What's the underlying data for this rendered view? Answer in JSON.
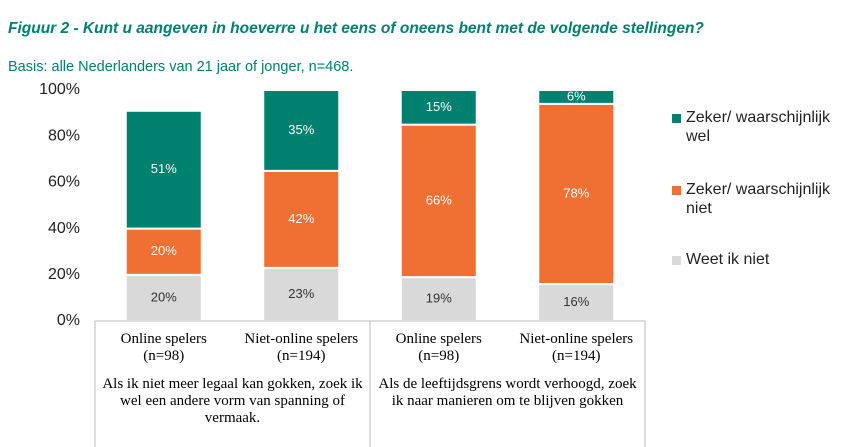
{
  "chart_data": {
    "type": "stacked-bar",
    "title": "Figuur 2 -  Kunt u aangeven in hoeverre u het eens of oneens bent met de volgende stellingen?",
    "subtitle": "Basis: alle Nederlanders van 21 jaar of jonger, n=468.",
    "categories": [
      [
        "Online spelers",
        "(n=98)"
      ],
      [
        "Niet-online spelers",
        "(n=194)"
      ],
      [
        "Online spelers",
        "(n=98)"
      ],
      [
        "Niet-online spelers",
        "(n=194)"
      ]
    ],
    "groups": [
      "Als ik niet meer legaal kan gokken, zoek ik wel een andere vorm van spanning of vermaak.",
      "Als de leeftijdsgrens wordt verhoogd, zoek ik naar manieren om te blijven gokken"
    ],
    "series": [
      {
        "name": "Weet ik niet",
        "color": "#d9d9d9",
        "values": [
          20,
          23,
          19,
          16
        ],
        "value_labels": [
          "20%",
          "23%",
          "19%",
          "16%"
        ]
      },
      {
        "name": "Zeker/ waarschijnlijk niet",
        "color": "#f07033",
        "values": [
          20,
          42,
          66,
          78
        ],
        "value_labels": [
          "20%",
          "42%",
          "66%",
          "78%"
        ]
      },
      {
        "name": "Zeker/ waarschijnlijk wel",
        "color": "#00806f",
        "values": [
          51,
          35,
          15,
          6
        ],
        "value_labels": [
          "51%",
          "35%",
          "15%",
          "6%"
        ]
      }
    ],
    "ylim": [
      0,
      100
    ],
    "yticks": [
      {
        "value": 0,
        "label": "0%"
      },
      {
        "value": 20,
        "label": "20%"
      },
      {
        "value": 40,
        "label": "40%"
      },
      {
        "value": 60,
        "label": "60%"
      },
      {
        "value": 80,
        "label": "80%"
      },
      {
        "value": 100,
        "label": "100%"
      }
    ]
  }
}
